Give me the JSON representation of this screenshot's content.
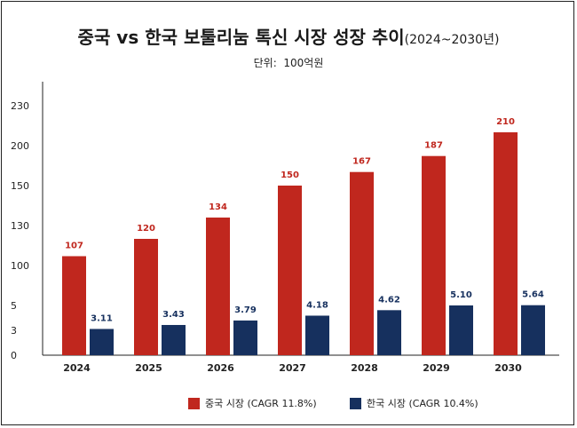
{
  "title": {
    "main": "중국 vs 한국 보툴리눔 톡신 시장 성장 추이",
    "years": "(2024~2030년)"
  },
  "unit": {
    "label": "단위:",
    "value": "100억원"
  },
  "colors": {
    "china": "#C0271E",
    "korea": "#16305E",
    "china_label": "#C0271E",
    "korea_label": "#16305E"
  },
  "chart_data": {
    "type": "bar",
    "title": "중국 vs 한국 보툴리눔 톡신 시장 성장 추이(2024~2030년)",
    "ylabel": "단위: 100억원",
    "axis_scale": "broken (non-linear)",
    "yticks": [
      "0",
      "3",
      "5",
      "100",
      "130",
      "150",
      "200",
      "230"
    ],
    "categories": [
      "2024",
      "2025",
      "2026",
      "2027",
      "2028",
      "2029",
      "2030"
    ],
    "series": [
      {
        "name": "중국 시장 (CAGR 11.8%)",
        "values": [
          107,
          120,
          134,
          150,
          167,
          187,
          210
        ],
        "labels": [
          "107",
          "120",
          "134",
          "150",
          "167",
          "187",
          "210"
        ]
      },
      {
        "name": "한국 시장 (CAGR 10.4%)",
        "values": [
          3.11,
          3.43,
          3.79,
          4.18,
          4.62,
          5.1,
          5.64
        ],
        "labels": [
          "3.11",
          "3.43",
          "3.79",
          "4.18",
          "4.62",
          "5.10",
          "5.64"
        ]
      }
    ]
  }
}
